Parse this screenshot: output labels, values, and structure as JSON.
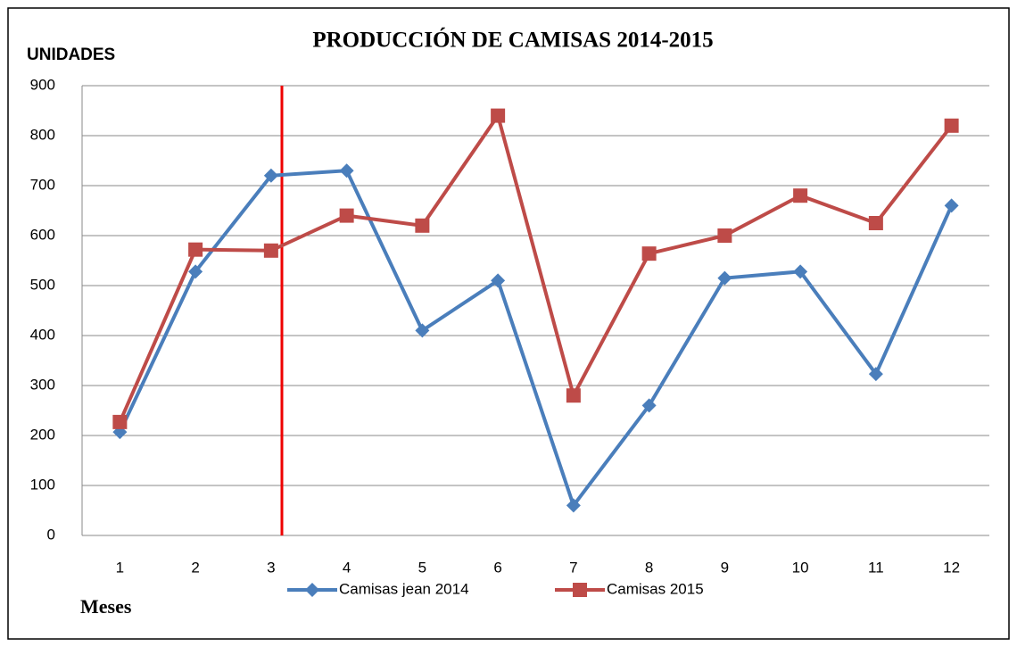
{
  "chart_data": {
    "type": "line",
    "title": "PRODUCCIÓN DE CAMISAS 2014-2015",
    "y_label": "UNIDADES",
    "x_label": "Meses",
    "categories": [
      "1",
      "2",
      "3",
      "4",
      "5",
      "6",
      "7",
      "8",
      "9",
      "10",
      "11",
      "12"
    ],
    "series": [
      {
        "name": "Camisas jean 2014",
        "color": "#4a7ebb",
        "values": [
          207,
          528,
          720,
          730,
          410,
          510,
          60,
          260,
          515,
          528,
          323,
          660
        ]
      },
      {
        "name": "Camisas 2015",
        "color": "#be4b48",
        "values": [
          227,
          572,
          570,
          640,
          620,
          840,
          280,
          564,
          600,
          680,
          625,
          820
        ]
      }
    ],
    "ylim": [
      0,
      900
    ],
    "yticks": [
      0,
      100,
      200,
      300,
      400,
      500,
      600,
      700,
      800,
      900
    ],
    "grid": true
  }
}
